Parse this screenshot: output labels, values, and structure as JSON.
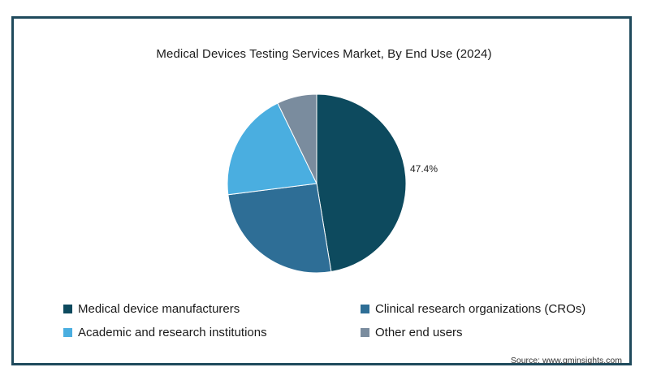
{
  "chart_data": {
    "type": "pie",
    "title": "Medical Devices Testing Services Market, By End Use (2024)",
    "categories": [
      "Medical device manufacturers",
      "Clinical research organizations (CROs)",
      "Academic and research institutions",
      "Other end users"
    ],
    "values": [
      47.4,
      25.6,
      19.8,
      7.2
    ],
    "colors": [
      "#0d4a5e",
      "#2e6e96",
      "#4aaee0",
      "#7a8c9e"
    ],
    "data_labels": [
      "47.4%",
      "",
      "",
      ""
    ],
    "legend_placement": "bottom",
    "source": "Source: www.gminsights.com"
  }
}
